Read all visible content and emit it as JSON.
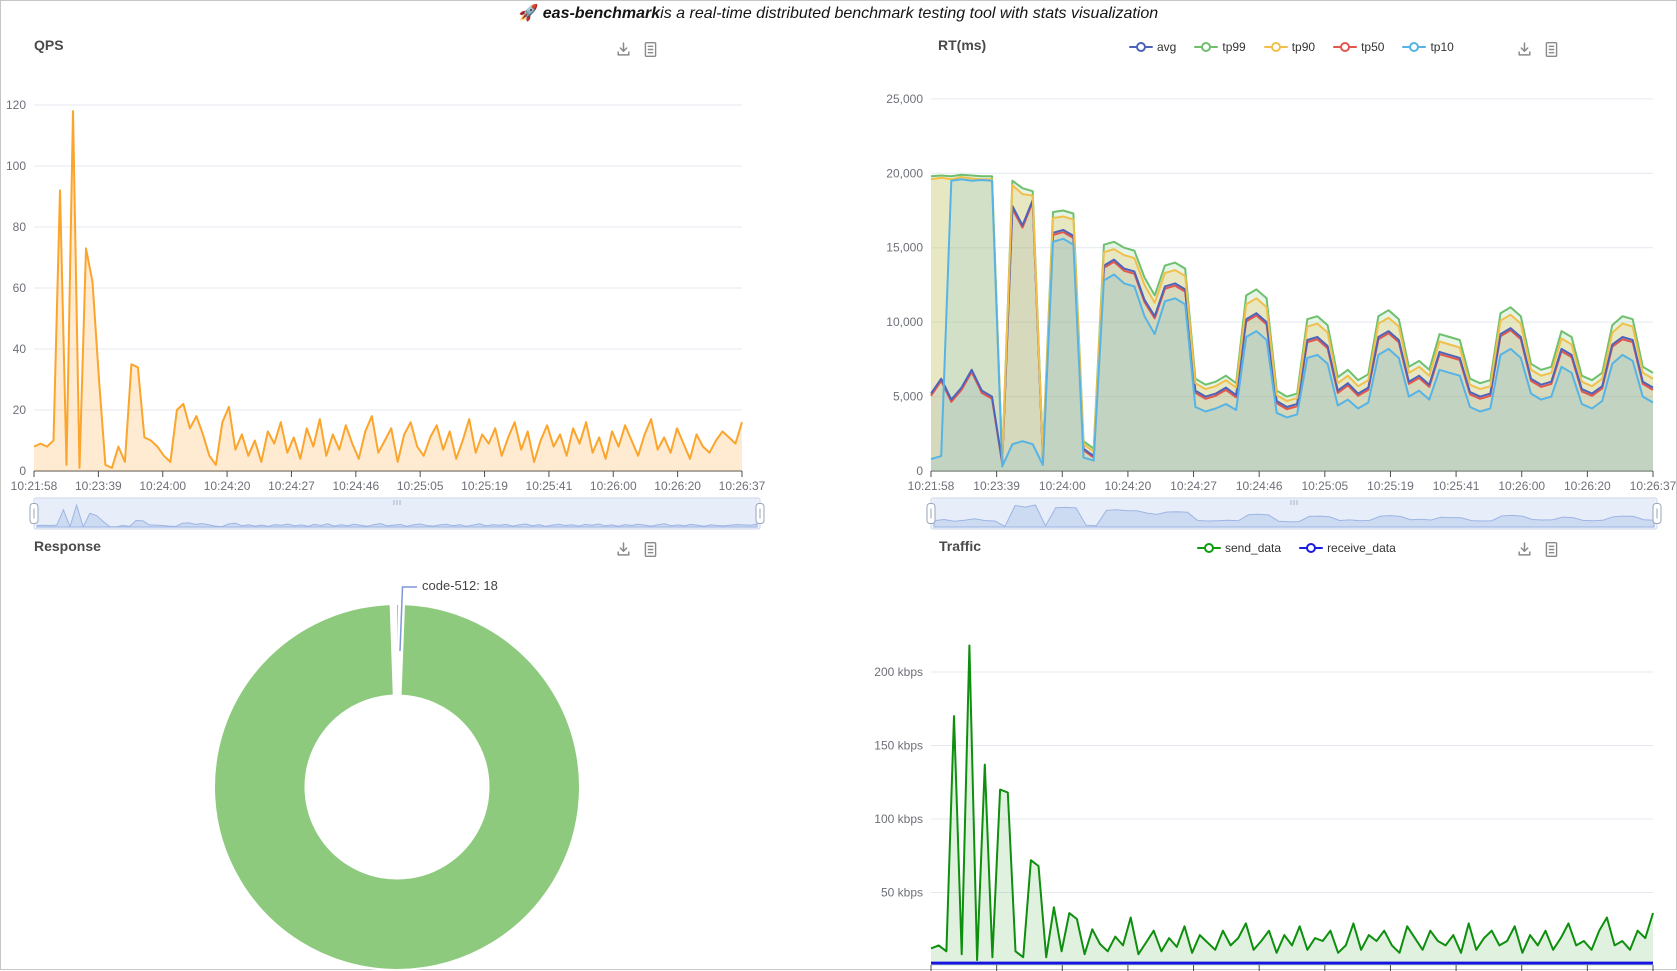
{
  "header": {
    "rocket_icon": "🚀",
    "title_bold": "eas-benchmark",
    "title_rest": "is a real-time distributed benchmark testing tool with stats visualization"
  },
  "panels": {
    "qps": {
      "title": "QPS"
    },
    "rt": {
      "title": "RT(ms)"
    },
    "response": {
      "title": "Response",
      "donut_label": "code-512: 18"
    },
    "traffic": {
      "title": "Traffic"
    }
  },
  "legends": {
    "rt": [
      {
        "label": "avg",
        "color": "#4c64bb"
      },
      {
        "label": "tp99",
        "color": "#6ec06e"
      },
      {
        "label": "tp90",
        "color": "#f2bf4a"
      },
      {
        "label": "tp50",
        "color": "#e2574d"
      },
      {
        "label": "tp10",
        "color": "#55b4e5"
      }
    ],
    "traffic": [
      {
        "label": "send_data",
        "color": "#0f9d0f"
      },
      {
        "label": "receive_data",
        "color": "#1a1ae6"
      }
    ]
  },
  "toolbox": {
    "save_image": "save-as-image",
    "data_view": "data-view"
  },
  "time_labels": [
    "10:21:58",
    "10:23:39",
    "10:24:00",
    "10:24:20",
    "10:24:27",
    "10:24:46",
    "10:25:05",
    "10:25:19",
    "10:25:41",
    "10:26:00",
    "10:26:20",
    "10:26:37"
  ],
  "slider_style": {
    "track": "#f0f4fb",
    "border": "#ccd6e8",
    "area": "#cdd9f2",
    "line": "#9fb6e4",
    "handle_fill": "#ffffff",
    "handle_border": "#9aa5b8",
    "grip": "#a8b4c9"
  },
  "chart_data": [
    {
      "id": "qps",
      "type": "area",
      "title": "QPS",
      "x_labels": [
        "10:21:58",
        "10:23:39",
        "10:24:00",
        "10:24:20",
        "10:24:27",
        "10:24:46",
        "10:25:05",
        "10:25:19",
        "10:25:41",
        "10:26:00",
        "10:26:20",
        "10:26:37"
      ],
      "ylim": [
        0,
        120
      ],
      "y_tick_values": [
        0,
        20,
        40,
        60,
        80,
        100,
        120
      ],
      "y_tick_labels": [
        "0",
        "20",
        "40",
        "60",
        "80",
        "100",
        "120"
      ],
      "series": [
        {
          "name": "QPS",
          "color": "#fba52d",
          "fill_opacity": 0.22,
          "values": [
            8,
            9,
            8,
            10,
            92,
            2,
            118,
            1,
            73,
            62,
            30,
            2,
            1,
            8,
            3,
            35,
            34,
            11,
            10,
            8,
            5,
            3,
            20,
            22,
            14,
            18,
            12,
            5,
            2,
            16,
            21,
            7,
            12,
            5,
            10,
            3,
            13,
            9,
            16,
            6,
            11,
            4,
            14,
            8,
            17,
            5,
            12,
            7,
            15,
            9,
            4,
            13,
            18,
            6,
            10,
            14,
            3,
            12,
            16,
            8,
            5,
            11,
            15,
            7,
            13,
            4,
            10,
            17,
            6,
            12,
            9,
            14,
            5,
            11,
            16,
            7,
            13,
            3,
            10,
            15,
            8,
            12,
            5,
            14,
            9,
            16,
            6,
            11,
            4,
            13,
            8,
            15,
            10,
            5,
            12,
            17,
            7,
            11,
            6,
            14,
            9,
            4,
            12,
            8,
            6,
            10,
            13,
            11,
            9,
            16
          ]
        }
      ]
    },
    {
      "id": "rt",
      "type": "area",
      "title": "RT(ms)",
      "x_labels": [
        "10:21:58",
        "10:23:39",
        "10:24:00",
        "10:24:20",
        "10:24:27",
        "10:24:46",
        "10:25:05",
        "10:25:19",
        "10:25:41",
        "10:26:00",
        "10:26:20",
        "10:26:37"
      ],
      "ylim": [
        0,
        25000
      ],
      "y_tick_values": [
        0,
        5000,
        10000,
        15000,
        20000,
        25000
      ],
      "y_tick_labels": [
        "0",
        "5,000",
        "10,000",
        "15,000",
        "20,000",
        "25,000"
      ],
      "series": [
        {
          "name": "avg",
          "color": "#4c64bb",
          "fill_opacity": 0.15,
          "values": [
            5200,
            6200,
            4800,
            5600,
            6800,
            5400,
            5000,
            600,
            17800,
            16500,
            18200,
            900,
            16000,
            16200,
            15800,
            1500,
            1000,
            13800,
            14200,
            13600,
            13400,
            11500,
            10400,
            12400,
            12600,
            12200,
            5400,
            5000,
            5200,
            5600,
            5100,
            10200,
            10600,
            10000,
            4700,
            4300,
            4500,
            8800,
            9000,
            8400,
            5400,
            5900,
            5200,
            5600,
            9000,
            9400,
            8800,
            6000,
            6400,
            5800,
            8000,
            7800,
            7600,
            5300,
            5000,
            5200,
            9200,
            9600,
            9000,
            6200,
            5800,
            6000,
            8200,
            7800,
            5500,
            5200,
            5700,
            8500,
            9000,
            8800,
            6000,
            5600
          ]
        },
        {
          "name": "tp99",
          "color": "#6ec06e",
          "fill_opacity": 0.18,
          "values": [
            19800,
            19850,
            19800,
            19900,
            19850,
            19800,
            19800,
            800,
            19500,
            19000,
            18800,
            1200,
            17400,
            17500,
            17300,
            2000,
            1500,
            15200,
            15400,
            15000,
            14800,
            13000,
            11800,
            13800,
            14000,
            13600,
            6200,
            5800,
            6000,
            6400,
            5900,
            11800,
            12200,
            11600,
            5400,
            5000,
            5200,
            10200,
            10400,
            9800,
            6300,
            6800,
            6100,
            6500,
            10400,
            10800,
            10200,
            7000,
            7400,
            6800,
            9200,
            9000,
            8800,
            6200,
            5900,
            6100,
            10600,
            11000,
            10400,
            7200,
            6800,
            7000,
            9400,
            9000,
            6400,
            6100,
            6600,
            9800,
            10400,
            10200,
            7000,
            6600
          ]
        },
        {
          "name": "tp90",
          "color": "#f2bf4a",
          "fill_opacity": 0.22,
          "values": [
            19600,
            19700,
            19600,
            19750,
            19650,
            19600,
            19600,
            700,
            19200,
            18600,
            18500,
            1000,
            17000,
            17100,
            16900,
            1800,
            1300,
            14700,
            14900,
            14500,
            14300,
            12500,
            11300,
            13300,
            13500,
            13100,
            5900,
            5500,
            5700,
            6100,
            5600,
            11200,
            11600,
            11000,
            5100,
            4700,
            4900,
            9700,
            9900,
            9300,
            5900,
            6400,
            5700,
            6100,
            9900,
            10300,
            9700,
            6600,
            7000,
            6400,
            8700,
            8500,
            8300,
            5800,
            5500,
            5700,
            10100,
            10500,
            9900,
            6800,
            6400,
            6600,
            8900,
            8500,
            6000,
            5700,
            6200,
            9300,
            9900,
            9700,
            6600,
            6200
          ]
        },
        {
          "name": "tp50",
          "color": "#e2574d",
          "fill_opacity": 0,
          "values": [
            5050,
            6050,
            4650,
            5450,
            6650,
            5250,
            4850,
            500,
            17600,
            16350,
            18050,
            800,
            15850,
            16050,
            15650,
            1400,
            900,
            13650,
            14050,
            13450,
            13250,
            11350,
            10250,
            12250,
            12450,
            12050,
            5250,
            4850,
            5050,
            5450,
            4950,
            10050,
            10450,
            9850,
            4550,
            4150,
            4350,
            8650,
            8850,
            8250,
            5250,
            5750,
            5050,
            5450,
            8850,
            9250,
            8650,
            5850,
            6250,
            5650,
            7850,
            7650,
            7450,
            5150,
            4850,
            5050,
            9050,
            9450,
            8850,
            6050,
            5650,
            5850,
            8050,
            7650,
            5350,
            5050,
            5550,
            8350,
            8850,
            8650,
            5850,
            5450
          ]
        },
        {
          "name": "tp10",
          "color": "#55b4e5",
          "fill_opacity": 0.15,
          "values": [
            800,
            1000,
            19500,
            19600,
            19500,
            19550,
            19500,
            300,
            1800,
            2000,
            1800,
            400,
            15400,
            15600,
            15200,
            900,
            700,
            12800,
            13200,
            12600,
            12400,
            10400,
            9200,
            11400,
            11600,
            11200,
            4300,
            4000,
            4200,
            4500,
            4100,
            9000,
            9400,
            8800,
            3900,
            3600,
            3800,
            7600,
            7800,
            7200,
            4400,
            4800,
            4200,
            4600,
            7800,
            8200,
            7600,
            5000,
            5400,
            4800,
            6800,
            6600,
            6400,
            4300,
            4000,
            4200,
            7800,
            8200,
            7600,
            5200,
            4800,
            5000,
            7000,
            6600,
            4500,
            4200,
            4700,
            7200,
            7800,
            7400,
            5000,
            4600
          ]
        }
      ]
    },
    {
      "id": "response",
      "type": "donut",
      "title": "Response",
      "inner_radius_ratio": 0.5,
      "slices": [
        {
          "name": "code-512",
          "value": 18,
          "label": "code-512: 18",
          "color": "#5470c6",
          "approx_fraction": 0.012
        },
        {
          "name": "",
          "label": "",
          "color": "#8dca7e",
          "approx_fraction": 0.988
        }
      ]
    },
    {
      "id": "traffic",
      "type": "area",
      "title": "Traffic",
      "y_unit": "kbps",
      "ylim": [
        0,
        250
      ],
      "y_tick_values": [
        50,
        100,
        150,
        200
      ],
      "y_tick_labels": [
        "50 kbps",
        "100 kbps",
        "150 kbps",
        "200 kbps"
      ],
      "series": [
        {
          "name": "send_data",
          "color": "#0e8f0e",
          "fill_opacity": 0.13,
          "values": [
            12,
            14,
            10,
            170,
            8,
            218,
            4,
            137,
            6,
            120,
            118,
            10,
            6,
            72,
            68,
            6,
            40,
            10,
            36,
            32,
            8,
            25,
            15,
            10,
            20,
            14,
            33,
            8,
            16,
            24,
            10,
            19,
            13,
            27,
            9,
            21,
            16,
            11,
            24,
            14,
            19,
            29,
            11,
            17,
            24,
            9,
            21,
            14,
            27,
            11,
            19,
            17,
            24,
            9,
            14,
            29,
            11,
            21,
            17,
            24,
            14,
            9,
            27,
            19,
            11,
            24,
            17,
            14,
            21,
            9,
            29,
            11,
            19,
            24,
            14,
            17,
            27,
            9,
            21,
            14,
            24,
            11,
            19,
            29,
            14,
            17,
            11,
            24,
            33,
            14,
            17,
            11,
            24,
            19,
            36
          ]
        },
        {
          "name": "receive_data",
          "color": "#1515dd",
          "fill_opacity": 0,
          "values": [
            2,
            2
          ]
        }
      ]
    }
  ]
}
